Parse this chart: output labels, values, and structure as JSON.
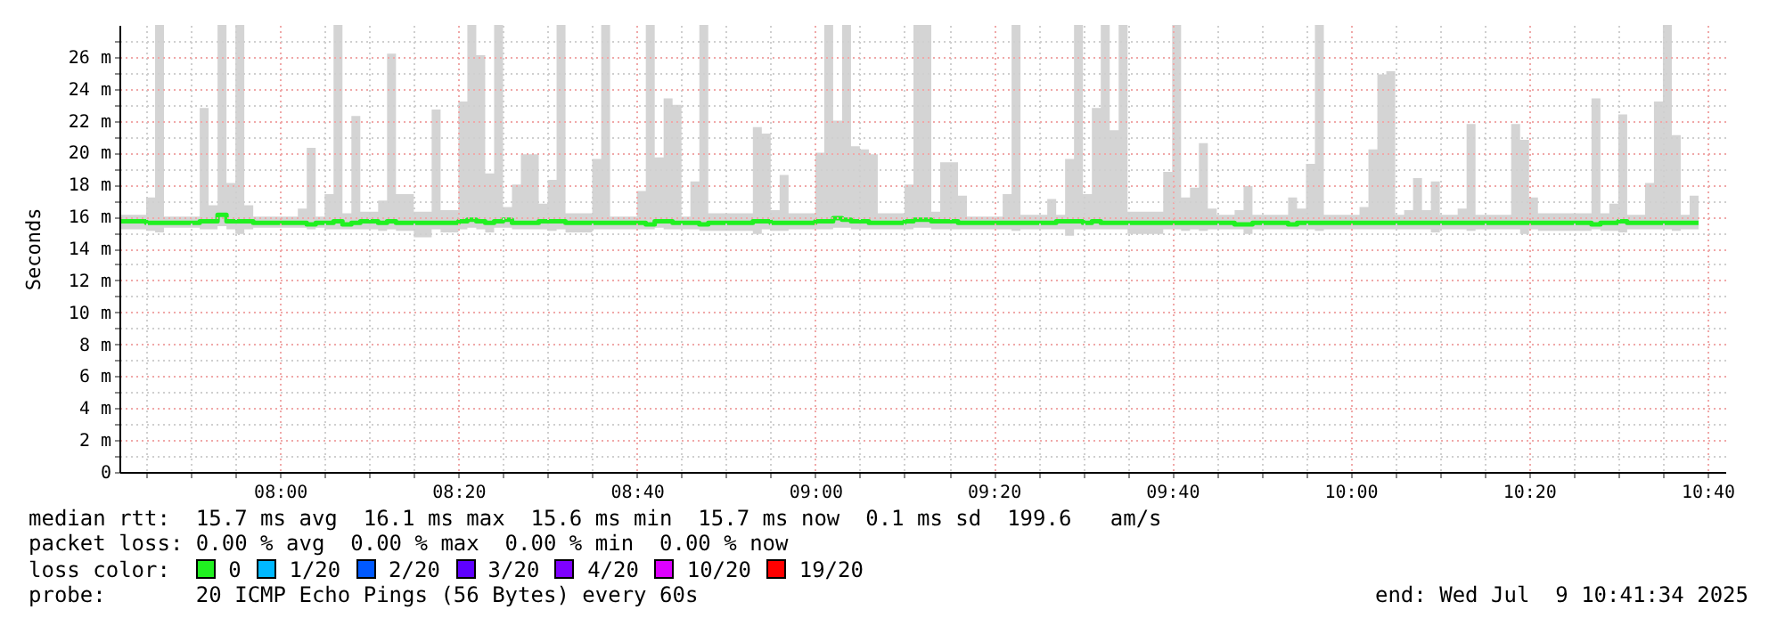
{
  "chart_data": {
    "type": "line",
    "ylabel": "Seconds",
    "legend_title": "loss color:",
    "legend": "bottom",
    "grid": true,
    "marker": "none",
    "xlim": [
      "2025-07-09T07:42",
      "2025-07-09T10:42"
    ],
    "xticks": [
      {
        "value": "2025-07-09T07:45",
        "label": null
      },
      {
        "value": "2025-07-09T07:50",
        "label": null
      },
      {
        "value": "2025-07-09T07:55",
        "label": null
      },
      {
        "value": "2025-07-09T08:00",
        "label": "08:00"
      },
      {
        "value": "2025-07-09T08:05",
        "label": null
      },
      {
        "value": "2025-07-09T08:10",
        "label": null
      },
      {
        "value": "2025-07-09T08:15",
        "label": null
      },
      {
        "value": "2025-07-09T08:20",
        "label": "08:20"
      },
      {
        "value": "2025-07-09T08:25",
        "label": null
      },
      {
        "value": "2025-07-09T08:30",
        "label": null
      },
      {
        "value": "2025-07-09T08:35",
        "label": null
      },
      {
        "value": "2025-07-09T08:40",
        "label": "08:40"
      },
      {
        "value": "2025-07-09T08:45",
        "label": null
      },
      {
        "value": "2025-07-09T08:50",
        "label": null
      },
      {
        "value": "2025-07-09T08:55",
        "label": null
      },
      {
        "value": "2025-07-09T09:00",
        "label": "09:00"
      },
      {
        "value": "2025-07-09T09:05",
        "label": null
      },
      {
        "value": "2025-07-09T09:10",
        "label": null
      },
      {
        "value": "2025-07-09T09:15",
        "label": null
      },
      {
        "value": "2025-07-09T09:20",
        "label": "09:20"
      },
      {
        "value": "2025-07-09T09:25",
        "label": null
      },
      {
        "value": "2025-07-09T09:30",
        "label": null
      },
      {
        "value": "2025-07-09T09:35",
        "label": null
      },
      {
        "value": "2025-07-09T09:40",
        "label": "09:40"
      },
      {
        "value": "2025-07-09T09:45",
        "label": null
      },
      {
        "value": "2025-07-09T09:50",
        "label": null
      },
      {
        "value": "2025-07-09T09:55",
        "label": null
      },
      {
        "value": "2025-07-09T10:00",
        "label": "10:00"
      },
      {
        "value": "2025-07-09T10:05",
        "label": null
      },
      {
        "value": "2025-07-09T10:10",
        "label": null
      },
      {
        "value": "2025-07-09T10:15",
        "label": null
      },
      {
        "value": "2025-07-09T10:20",
        "label": "10:20"
      },
      {
        "value": "2025-07-09T10:25",
        "label": null
      },
      {
        "value": "2025-07-09T10:30",
        "label": null
      },
      {
        "value": "2025-07-09T10:35",
        "label": null
      },
      {
        "value": "2025-07-09T10:40",
        "label": "10:40"
      }
    ],
    "ylim": [
      0,
      28
    ],
    "yticks": [
      0,
      {
        "value": 1,
        "label": null
      },
      {
        "value": 2,
        "label": "2 m"
      },
      {
        "value": 3,
        "label": null
      },
      {
        "value": 4,
        "label": "4 m"
      },
      {
        "value": 5,
        "label": null
      },
      {
        "value": 6,
        "label": "6 m"
      },
      {
        "value": 7,
        "label": null
      },
      {
        "value": 8,
        "label": "8 m"
      },
      {
        "value": 9,
        "label": null
      },
      {
        "value": 10,
        "label": "10 m"
      },
      {
        "value": 11,
        "label": null
      },
      {
        "value": 12,
        "label": "12 m"
      },
      {
        "value": 13,
        "label": null
      },
      {
        "value": 14,
        "label": "14 m"
      },
      {
        "value": 15,
        "label": null
      },
      {
        "value": 16,
        "label": "16 m"
      },
      {
        "value": 17,
        "label": null
      },
      {
        "value": 18,
        "label": "18 m"
      },
      {
        "value": 19,
        "label": null
      },
      {
        "value": 20,
        "label": "20 m"
      },
      {
        "value": 21,
        "label": null
      },
      {
        "value": 22,
        "label": "22 m"
      },
      {
        "value": 23,
        "label": null
      },
      {
        "value": 24,
        "label": "24 m"
      },
      {
        "value": 25,
        "label": null
      },
      {
        "value": 26,
        "label": "26 m"
      },
      {
        "value": 27,
        "label": null
      }
    ],
    "annotations": [
      "median rtt:  15.7 ms avg  16.1 ms max  15.6 ms min  15.7 ms now  0.1 ms sd  199.6   am/s",
      "packet loss: 0.00 % avg  0.00 % max  0.00 % min  0.00 % now",
      "probe:       20 ICMP Echo Pings (56 Bytes) every 60s",
      "end: Wed Jul  9 10:41:34 2025"
    ],
    "series": [
      {
        "name": "0",
        "color": "#20f020",
        "x": [
          "2025-07-09T07:42",
          "2025-07-09T07:45",
          "2025-07-09T07:46",
          "2025-07-09T07:47",
          "2025-07-09T07:51",
          "2025-07-09T07:52",
          "2025-07-09T07:53",
          "2025-07-09T07:54",
          "2025-07-09T07:55",
          "2025-07-09T07:56",
          "2025-07-09T07:57",
          "2025-07-09T08:02",
          "2025-07-09T08:03",
          "2025-07-09T08:04",
          "2025-07-09T08:05",
          "2025-07-09T08:06",
          "2025-07-09T08:07",
          "2025-07-09T08:08",
          "2025-07-09T08:09",
          "2025-07-09T08:11",
          "2025-07-09T08:12",
          "2025-07-09T08:13",
          "2025-07-09T08:15",
          "2025-07-09T08:17",
          "2025-07-09T08:18",
          "2025-07-09T08:20",
          "2025-07-09T08:21",
          "2025-07-09T08:22",
          "2025-07-09T08:23",
          "2025-07-09T08:24",
          "2025-07-09T08:25",
          "2025-07-09T08:26",
          "2025-07-09T08:27",
          "2025-07-09T08:29",
          "2025-07-09T08:30",
          "2025-07-09T08:31",
          "2025-07-09T08:32",
          "2025-07-09T08:35",
          "2025-07-09T08:36",
          "2025-07-09T08:37",
          "2025-07-09T08:40",
          "2025-07-09T08:41",
          "2025-07-09T08:42",
          "2025-07-09T08:43",
          "2025-07-09T08:44",
          "2025-07-09T08:45",
          "2025-07-09T08:46",
          "2025-07-09T08:47",
          "2025-07-09T08:48",
          "2025-07-09T08:53",
          "2025-07-09T08:54",
          "2025-07-09T08:55",
          "2025-07-09T08:56",
          "2025-07-09T08:57",
          "2025-07-09T09:00",
          "2025-07-09T09:01",
          "2025-07-09T09:02",
          "2025-07-09T09:03",
          "2025-07-09T09:04",
          "2025-07-09T09:05",
          "2025-07-09T09:06",
          "2025-07-09T09:07",
          "2025-07-09T09:10",
          "2025-07-09T09:11",
          "2025-07-09T09:13",
          "2025-07-09T09:14",
          "2025-07-09T09:16",
          "2025-07-09T09:17",
          "2025-07-09T09:21",
          "2025-07-09T09:22",
          "2025-07-09T09:23",
          "2025-07-09T09:26",
          "2025-07-09T09:27",
          "2025-07-09T09:28",
          "2025-07-09T09:29",
          "2025-07-09T09:30",
          "2025-07-09T09:31",
          "2025-07-09T09:32",
          "2025-07-09T09:33",
          "2025-07-09T09:34",
          "2025-07-09T09:35",
          "2025-07-09T09:39",
          "2025-07-09T09:40",
          "2025-07-09T09:41",
          "2025-07-09T09:42",
          "2025-07-09T09:43",
          "2025-07-09T09:44",
          "2025-07-09T09:45",
          "2025-07-09T09:47",
          "2025-07-09T09:48",
          "2025-07-09T09:49",
          "2025-07-09T09:53",
          "2025-07-09T09:54",
          "2025-07-09T09:55",
          "2025-07-09T09:56",
          "2025-07-09T09:57",
          "2025-07-09T10:01",
          "2025-07-09T10:02",
          "2025-07-09T10:03",
          "2025-07-09T10:04",
          "2025-07-09T10:05",
          "2025-07-09T10:06",
          "2025-07-09T10:07",
          "2025-07-09T10:08",
          "2025-07-09T10:09",
          "2025-07-09T10:10",
          "2025-07-09T10:12",
          "2025-07-09T10:13",
          "2025-07-09T10:14",
          "2025-07-09T10:18",
          "2025-07-09T10:19",
          "2025-07-09T10:20",
          "2025-07-09T10:21",
          "2025-07-09T10:27",
          "2025-07-09T10:28",
          "2025-07-09T10:29",
          "2025-07-09T10:30",
          "2025-07-09T10:31",
          "2025-07-09T10:33",
          "2025-07-09T10:34",
          "2025-07-09T10:35",
          "2025-07-09T10:36",
          "2025-07-09T10:37",
          "2025-07-09T10:38",
          "2025-07-09T10:39"
        ],
        "values": [
          15.7,
          15.6,
          15.6,
          15.6,
          15.7,
          15.7,
          16.1,
          15.7,
          15.7,
          15.7,
          15.6,
          15.6,
          15.5,
          15.6,
          15.6,
          15.7,
          15.5,
          15.6,
          15.7,
          15.6,
          15.7,
          15.6,
          15.6,
          15.6,
          15.6,
          15.7,
          15.8,
          15.7,
          15.6,
          15.7,
          15.8,
          15.6,
          15.6,
          15.7,
          15.7,
          15.7,
          15.6,
          15.6,
          15.6,
          15.6,
          15.6,
          15.5,
          15.7,
          15.7,
          15.6,
          15.6,
          15.6,
          15.5,
          15.6,
          15.7,
          15.7,
          15.6,
          15.6,
          15.6,
          15.7,
          15.7,
          15.9,
          15.8,
          15.7,
          15.7,
          15.6,
          15.6,
          15.7,
          15.8,
          15.7,
          15.7,
          15.6,
          15.6,
          15.6,
          15.6,
          15.6,
          15.6,
          15.7,
          15.7,
          15.7,
          15.6,
          15.7,
          15.6,
          15.6,
          15.6,
          15.6,
          15.6,
          15.6,
          15.6,
          15.6,
          15.6,
          15.6,
          15.6,
          15.5,
          15.5,
          15.6,
          15.5,
          15.6,
          15.6,
          15.6,
          15.6,
          15.6,
          15.6,
          15.6,
          15.6,
          15.6,
          15.6,
          15.6,
          15.6,
          15.6,
          15.6,
          15.6,
          15.6,
          15.6,
          15.6,
          15.6,
          15.6,
          15.6,
          15.5,
          15.6,
          15.6,
          15.7,
          15.6,
          15.6,
          15.6,
          15.6,
          15.6,
          15.6,
          15.6,
          15.6
        ],
        "lower": [
          15.2,
          15.1,
          15.0,
          15.3,
          15.2,
          15.2,
          15.4,
          15.2,
          14.9,
          15.2,
          15.3,
          15.3,
          15.2,
          15.3,
          15.2,
          15.2,
          15.2,
          15.2,
          15.2,
          15.1,
          15.2,
          15.1,
          14.7,
          15.2,
          15.0,
          15.2,
          15.3,
          15.2,
          15.0,
          15.3,
          15.3,
          15.2,
          15.2,
          15.2,
          15.1,
          15.2,
          15.0,
          15.2,
          15.2,
          15.2,
          15.2,
          15.2,
          15.3,
          15.2,
          15.2,
          15.2,
          15.2,
          15.1,
          15.1,
          14.9,
          15.2,
          15.1,
          15.1,
          15.2,
          15.2,
          15.2,
          15.3,
          15.3,
          15.2,
          15.2,
          15.2,
          15.2,
          15.2,
          15.3,
          15.2,
          15.2,
          15.2,
          15.2,
          15.2,
          15.1,
          15.2,
          15.2,
          15.2,
          14.8,
          15.2,
          15.2,
          15.2,
          15.2,
          15.2,
          15.2,
          14.9,
          15.2,
          15.2,
          15.1,
          15.2,
          15.1,
          15.2,
          15.2,
          15.2,
          14.9,
          15.2,
          15.2,
          15.2,
          15.2,
          15.1,
          15.2,
          15.2,
          15.2,
          15.2,
          15.2,
          15.2,
          15.2,
          15.2,
          15.2,
          15.0,
          15.2,
          15.2,
          15.1,
          15.2,
          15.2,
          14.9,
          15.2,
          15.1,
          15.2,
          15.1,
          15.1,
          15.0,
          15.2,
          15.2,
          15.2,
          15.2,
          15.1,
          15.2,
          15.2,
          15.2
        ],
        "upper": [
          16.1,
          17.2,
          28,
          16.0,
          22.8,
          16.7,
          28,
          18.1,
          28,
          16.7,
          16.0,
          16.5,
          20.3,
          16.0,
          17.4,
          28,
          16.2,
          22.3,
          16.3,
          17.0,
          26.2,
          17.4,
          16.3,
          22.7,
          16.4,
          23.2,
          28,
          26.1,
          18.7,
          28,
          16.6,
          18.0,
          19.9,
          16.8,
          18.3,
          28,
          16.2,
          19.6,
          28,
          16.0,
          17.6,
          28,
          19.7,
          23.4,
          23.0,
          16.0,
          18.2,
          28,
          16.2,
          21.6,
          21.2,
          16.4,
          18.6,
          16.2,
          20.0,
          28,
          22.0,
          28,
          20.4,
          20.2,
          19.9,
          16.2,
          18.0,
          28,
          16.3,
          19.4,
          17.3,
          16.0,
          17.4,
          28,
          16.1,
          17.1,
          16.1,
          19.6,
          28,
          17.4,
          22.8,
          28,
          21.4,
          28,
          16.3,
          18.8,
          28,
          17.2,
          17.8,
          20.6,
          16.5,
          16.1,
          16.4,
          17.9,
          16.1,
          17.2,
          16.5,
          19.3,
          28,
          16.1,
          16.6,
          20.2,
          24.9,
          25.1,
          16.1,
          16.4,
          18.4,
          16.4,
          18.2,
          16.1,
          16.5,
          21.8,
          16.1,
          21.8,
          20.8,
          17.2,
          16.2,
          23.4,
          16.2,
          16.8,
          22.4,
          16.1,
          18.1,
          23.2,
          28,
          21.1,
          16.1,
          17.3,
          17.3
        ]
      },
      {
        "name": "1/20",
        "color": "#00b8ff"
      },
      {
        "name": "2/20",
        "color": "#0059ff"
      },
      {
        "name": "3/20",
        "color": "#5e00ff"
      },
      {
        "name": "4/20",
        "color": "#7e00ff"
      },
      {
        "name": "10/20",
        "color": "#dd00ff"
      },
      {
        "name": "19/20",
        "color": "#ff0000"
      }
    ]
  }
}
